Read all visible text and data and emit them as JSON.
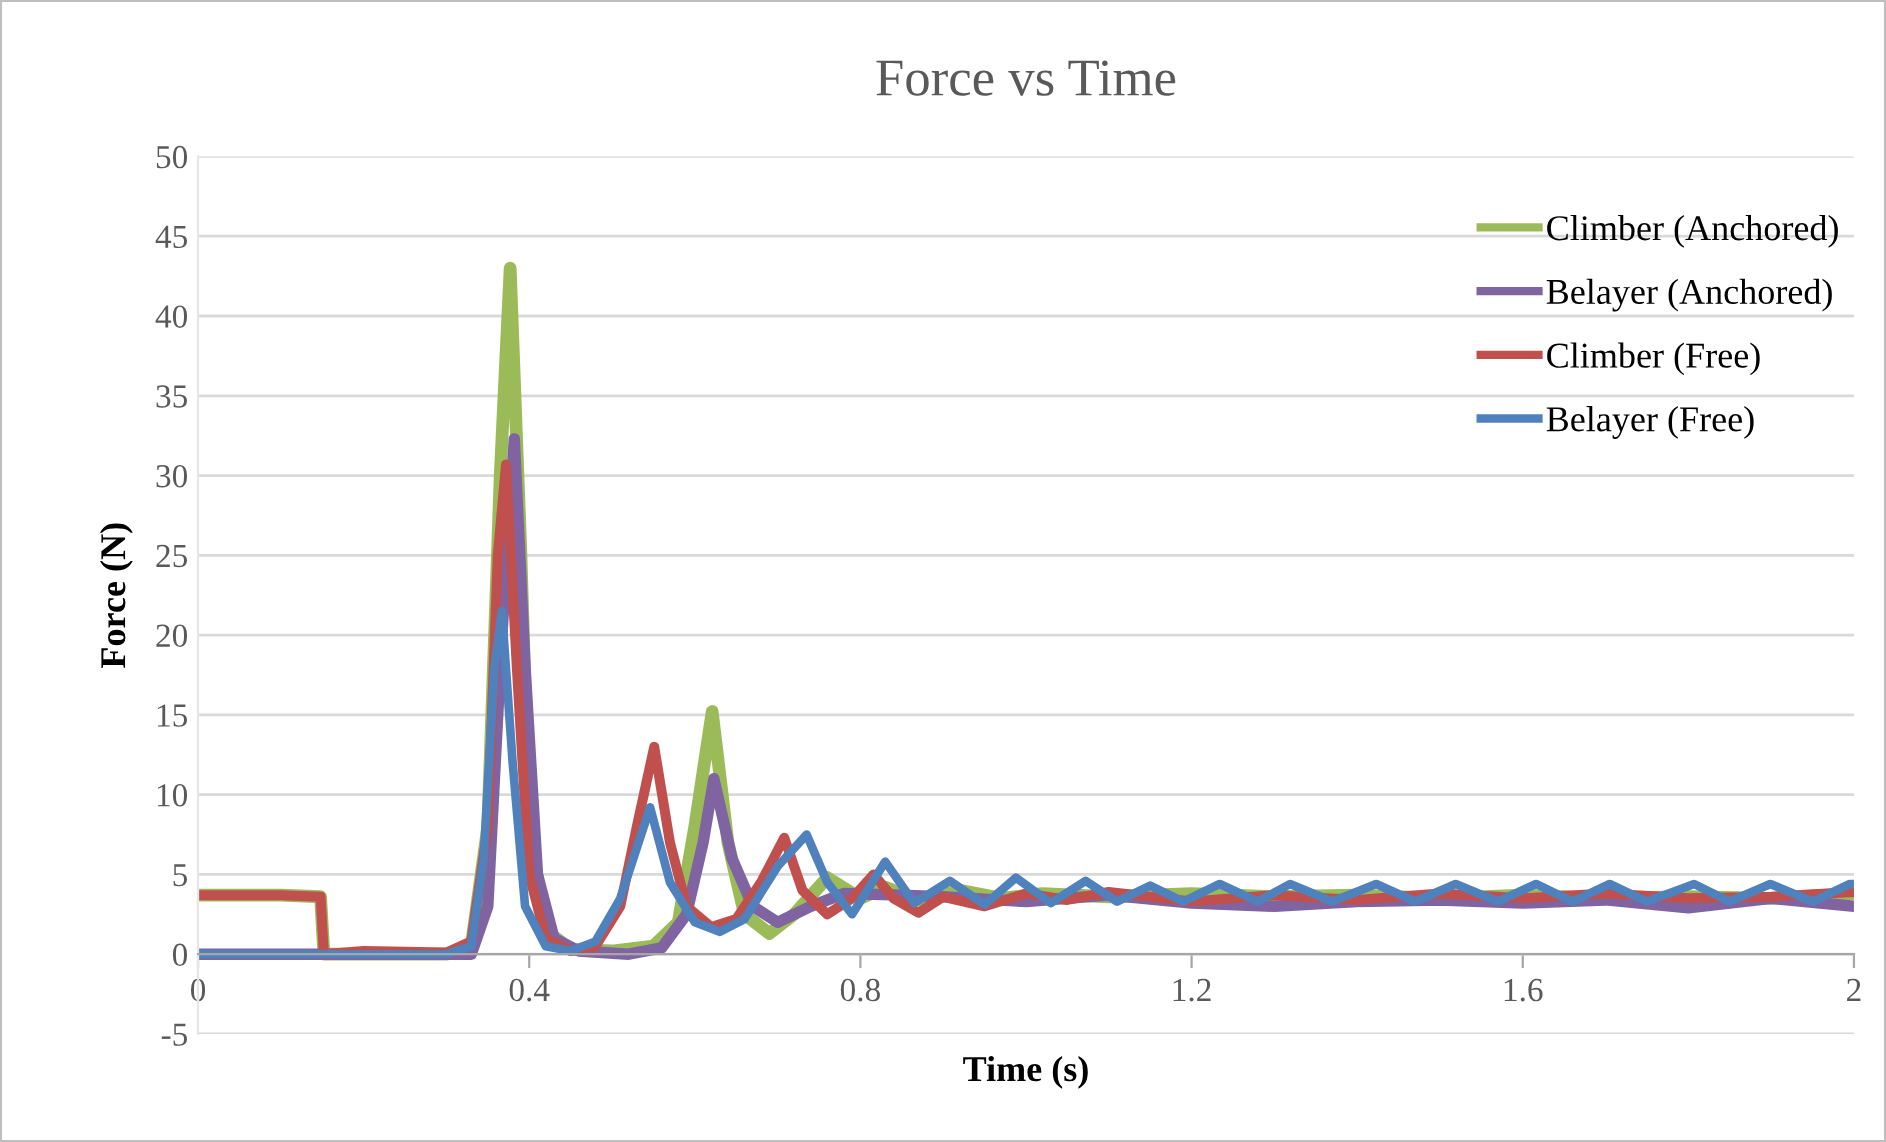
{
  "chart_data": {
    "type": "line",
    "title": "Force vs Time",
    "xlabel": "Time (s)",
    "ylabel": "Force (N)",
    "xlim": [
      0,
      2
    ],
    "xticks": [
      0,
      0.4,
      0.8,
      1.2,
      1.6,
      2
    ],
    "ylim": [
      -5,
      50
    ],
    "yticks": [
      -5,
      0,
      5,
      10,
      15,
      20,
      25,
      30,
      35,
      40,
      45,
      50
    ],
    "grid": "y",
    "legend": "top right",
    "marker": "none",
    "line_style": "solid",
    "series": [
      {
        "name": "Climber (Anchored)",
        "color": "#9bbb59",
        "x": [
          0,
          0.1,
          0.148,
          0.152,
          0.3,
          0.33,
          0.35,
          0.365,
          0.377,
          0.39,
          0.4,
          0.42,
          0.45,
          0.5,
          0.55,
          0.58,
          0.6,
          0.621,
          0.64,
          0.66,
          0.69,
          0.72,
          0.76,
          0.8,
          0.83,
          0.87,
          0.92,
          0.97,
          1.02,
          1.1,
          1.2,
          1.3,
          1.4,
          1.5,
          1.6,
          1.7,
          1.8,
          1.9,
          2.0
        ],
        "values": [
          3.7,
          3.7,
          3.6,
          0,
          0,
          0.5,
          8,
          30,
          43,
          25,
          8,
          1.5,
          0.3,
          0.2,
          0.5,
          2,
          8,
          15.2,
          7,
          2.5,
          1.3,
          2.5,
          4.8,
          3.5,
          4.2,
          3.4,
          4.0,
          3.5,
          3.8,
          3.6,
          3.8,
          3.6,
          3.7,
          3.5,
          3.7,
          3.5,
          3.6,
          3.5,
          3.8
        ]
      },
      {
        "name": "Belayer (Anchored)",
        "color": "#8064a2",
        "x": [
          0,
          0.33,
          0.35,
          0.367,
          0.382,
          0.395,
          0.41,
          0.43,
          0.46,
          0.52,
          0.56,
          0.59,
          0.61,
          0.623,
          0.645,
          0.67,
          0.7,
          0.74,
          0.78,
          0.85,
          0.9,
          1.0,
          1.1,
          1.2,
          1.3,
          1.4,
          1.5,
          1.6,
          1.7,
          1.8,
          1.9,
          2.0
        ],
        "values": [
          0,
          0,
          3,
          20,
          32.3,
          18,
          5,
          1,
          0.2,
          0,
          0.4,
          2.5,
          7,
          11,
          6,
          3,
          2.0,
          3.0,
          3.8,
          3.7,
          3.6,
          3.3,
          3.7,
          3.2,
          3.0,
          3.3,
          3.4,
          3.2,
          3.4,
          2.9,
          3.5,
          3.0
        ]
      },
      {
        "name": "Climber (Free)",
        "color": "#c0504d",
        "x": [
          0,
          0.1,
          0.148,
          0.152,
          0.2,
          0.3,
          0.33,
          0.35,
          0.362,
          0.372,
          0.385,
          0.4,
          0.42,
          0.45,
          0.48,
          0.51,
          0.53,
          0.551,
          0.57,
          0.59,
          0.62,
          0.65,
          0.68,
          0.708,
          0.73,
          0.76,
          0.79,
          0.816,
          0.84,
          0.87,
          0.9,
          0.95,
          1.0,
          1.05,
          1.1,
          1.2,
          1.3,
          1.4,
          1.5,
          1.6,
          1.7,
          1.8,
          1.9,
          2.0
        ],
        "values": [
          3.7,
          3.7,
          3.6,
          0,
          0.2,
          0.1,
          0.8,
          8,
          25,
          30.7,
          18,
          5,
          1,
          0.2,
          0.5,
          3,
          8,
          13,
          7,
          3,
          1.7,
          2.2,
          4.5,
          7.3,
          4,
          2.5,
          3.5,
          5,
          3.5,
          2.6,
          3.6,
          3.0,
          3.8,
          3.4,
          3.9,
          3.3,
          3.7,
          3.4,
          3.8,
          3.5,
          3.8,
          3.5,
          3.6,
          3.9
        ]
      },
      {
        "name": "Belayer (Free)",
        "color": "#4f81bd",
        "x": [
          0,
          0.3,
          0.33,
          0.345,
          0.358,
          0.367,
          0.38,
          0.395,
          0.42,
          0.45,
          0.48,
          0.51,
          0.546,
          0.57,
          0.6,
          0.63,
          0.66,
          0.7,
          0.735,
          0.76,
          0.79,
          0.83,
          0.865,
          0.908,
          0.95,
          0.988,
          1.03,
          1.072,
          1.11,
          1.15,
          1.19,
          1.234,
          1.28,
          1.319,
          1.37,
          1.423,
          1.47,
          1.519,
          1.57,
          1.616,
          1.66,
          1.705,
          1.75,
          1.807,
          1.85,
          1.899,
          1.95,
          1.995,
          2.0
        ],
        "values": [
          0,
          0,
          0.5,
          6,
          18,
          21.5,
          12,
          3,
          0.5,
          0.2,
          0.8,
          3.5,
          9.2,
          4.5,
          2,
          1.4,
          2.2,
          5.5,
          7.5,
          4.5,
          2.5,
          5.8,
          3.2,
          4.6,
          3.1,
          4.8,
          3.2,
          4.6,
          3.3,
          4.3,
          3.3,
          4.4,
          3.3,
          4.4,
          3.3,
          4.4,
          3.3,
          4.4,
          3.3,
          4.4,
          3.3,
          4.4,
          3.3,
          4.4,
          3.3,
          4.4,
          3.3,
          4.4,
          4.4
        ]
      }
    ]
  }
}
